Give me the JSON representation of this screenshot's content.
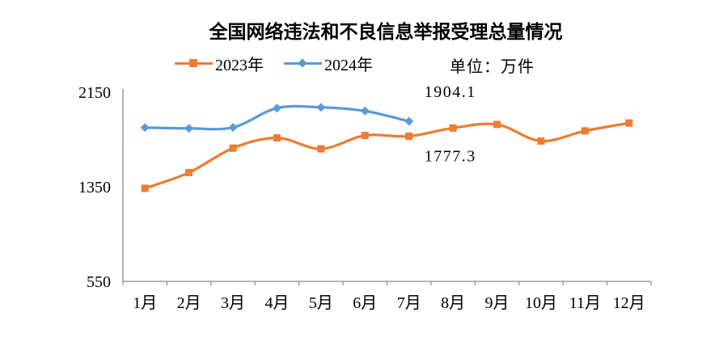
{
  "chart_data": {
    "type": "line",
    "title": "全国网络违法和不良信息举报受理总量情况",
    "unit": "单位：万件",
    "categories": [
      "1月",
      "2月",
      "3月",
      "4月",
      "5月",
      "6月",
      "7月",
      "8月",
      "9月",
      "10月",
      "11月",
      "12月"
    ],
    "series": [
      {
        "name": "2023年",
        "color": "#ED7D31",
        "marker": "square",
        "values": [
          1337,
          1470,
          1677,
          1764,
          1671,
          1784,
          1777.3,
          1847,
          1877,
          1737,
          1823,
          1889
        ]
      },
      {
        "name": "2024年",
        "color": "#5B9BD5",
        "marker": "diamond",
        "values": [
          1851,
          1844,
          1852,
          2015,
          2022,
          1991,
          1904.1
        ]
      }
    ],
    "annotations": [
      {
        "text": "1904.1",
        "series": "2024年",
        "category": "7月",
        "placement": "above"
      },
      {
        "text": "1777.3",
        "series": "2023年",
        "category": "7月",
        "placement": "below"
      }
    ],
    "yticks": [
      2150,
      1350,
      550
    ],
    "ylim": [
      550,
      2150
    ],
    "grid": false,
    "smooth": true,
    "legend_position": "top"
  },
  "colors": {
    "axis": "#8a8a8a",
    "series_2023": "#ED7D31",
    "series_2024": "#5B9BD5",
    "text": "#000000",
    "background": "#FFFFFF"
  }
}
